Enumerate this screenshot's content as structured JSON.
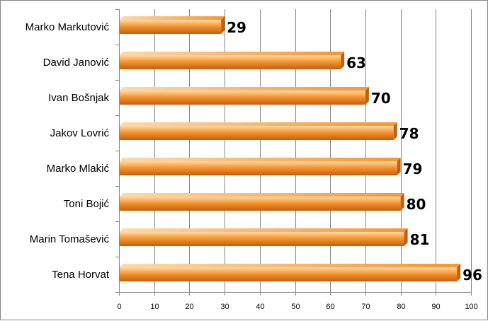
{
  "chart_data": {
    "type": "bar",
    "orientation": "horizontal",
    "categories": [
      "Marko Markutović",
      "David Janović",
      "Ivan Bošnjak",
      "Jakov Lovrić",
      "Marko Mlakić",
      "Toni Bojić",
      "Marin Tomašević",
      "Tena Horvat"
    ],
    "values": [
      29,
      63,
      70,
      78,
      79,
      80,
      81,
      96
    ],
    "title": "",
    "xlabel": "",
    "ylabel": "",
    "xlim": [
      0,
      100
    ],
    "x_ticks": [
      "0",
      "10",
      "20",
      "30",
      "40",
      "50",
      "60",
      "70",
      "80",
      "90",
      "100"
    ],
    "data_labels": [
      "29",
      "63",
      "70",
      "78",
      "79",
      "80",
      "81",
      "96"
    ],
    "grid": "vertical",
    "legend": "none",
    "colors": {
      "bar_light": "#FFD9A8",
      "bar_mid": "#F7962F",
      "bar_dark": "#C25E0F",
      "grid": "#868686"
    }
  }
}
